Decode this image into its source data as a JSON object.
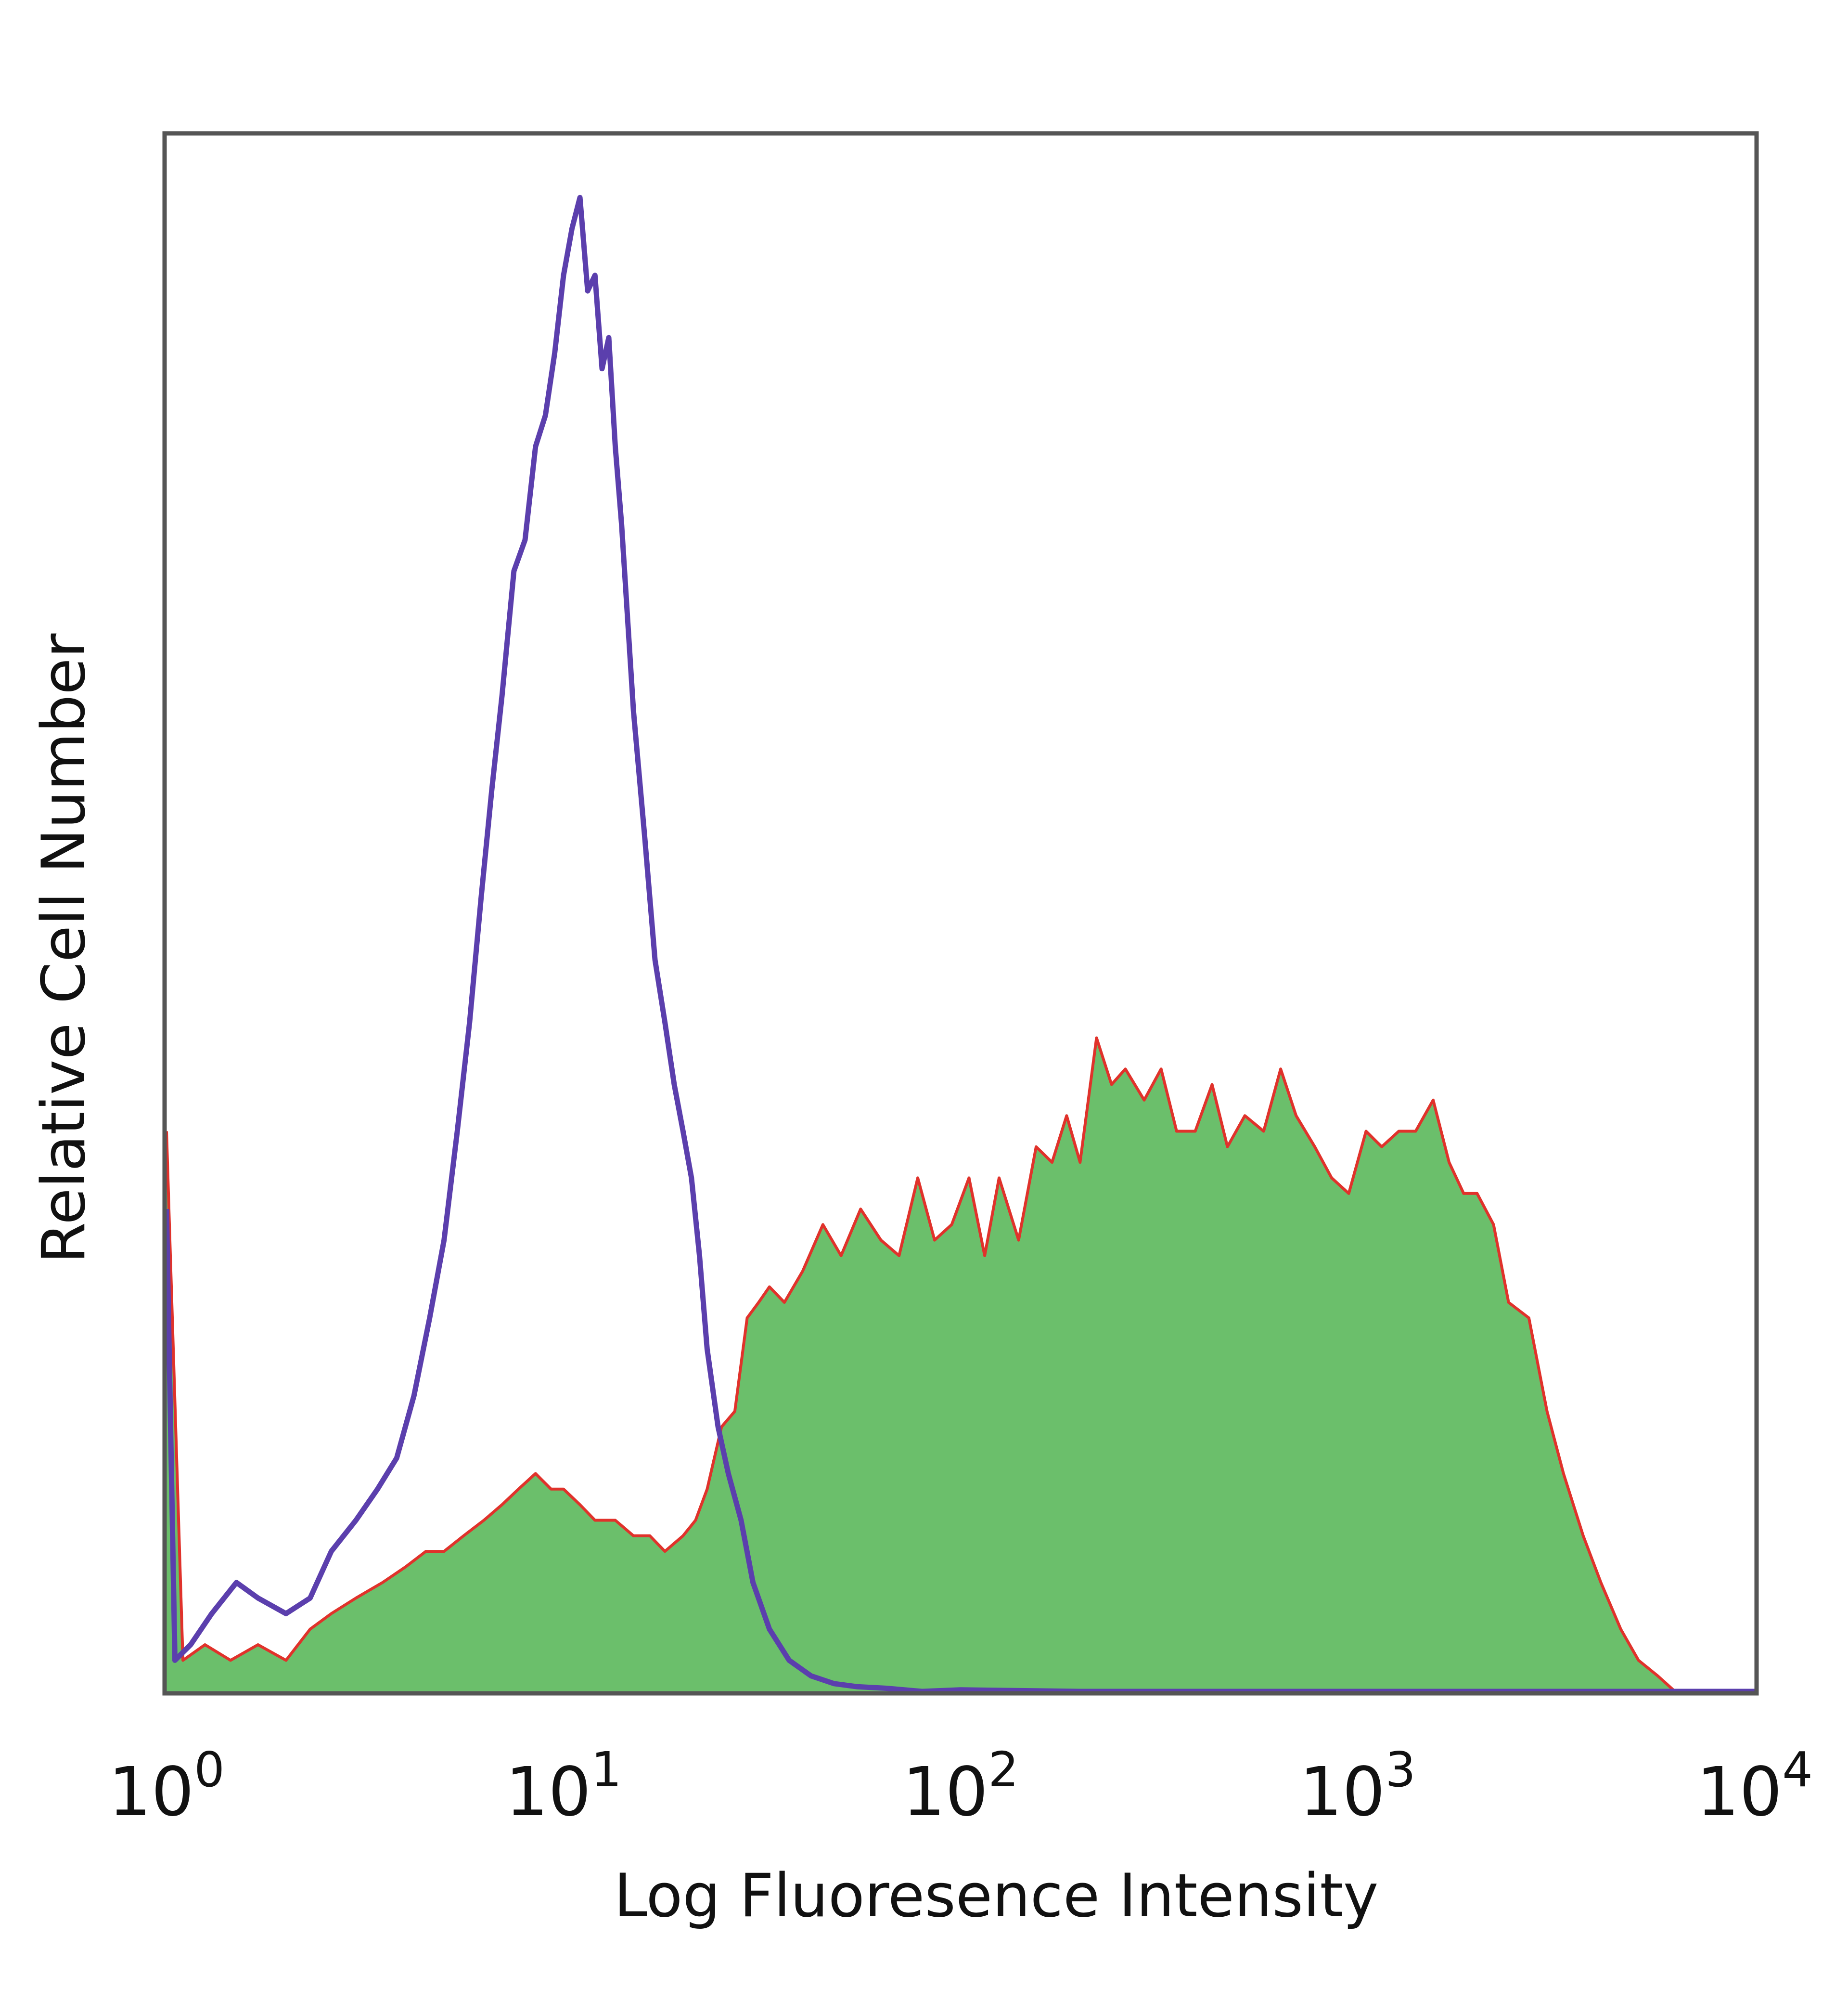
{
  "chart_data": {
    "type": "area",
    "title": "",
    "xlabel": "Log Fluoresence Intensity",
    "ylabel": "Relative Cell Number",
    "xscale": "log",
    "xlim": [
      1,
      10000
    ],
    "ylim": [
      0,
      1
    ],
    "grid": false,
    "legend": "none",
    "x_ticks": [
      {
        "base": "10",
        "exp": "0"
      },
      {
        "base": "10",
        "exp": "1"
      },
      {
        "base": "10",
        "exp": "2"
      },
      {
        "base": "10",
        "exp": "3"
      },
      {
        "base": "10",
        "exp": "4"
      }
    ],
    "series": [
      {
        "style": "filled",
        "fill_color": "#6bbf6b",
        "line_color": "#e0322b",
        "x": [
          1.0,
          1.1,
          1.25,
          1.45,
          1.7,
          2.0,
          2.3,
          2.6,
          3.0,
          3.5,
          4.0,
          4.5,
          5.0,
          5.6,
          6.3,
          7.0,
          7.7,
          8.5,
          9.3,
          10.0,
          11.0,
          12.0,
          13.5,
          15.0,
          16.5,
          18.0,
          20.0,
          21.5,
          23.0,
          25.0,
          27.0,
          29.0,
          31.0,
          33.0,
          36.0,
          40.0,
          45.0,
          50.0,
          56.0,
          63.0,
          70.0,
          78.0,
          86.0,
          95.0,
          105.0,
          115.0,
          125.0,
          140.0,
          155.0,
          170.0,
          185.0,
          200.0,
          220.0,
          240.0,
          260.0,
          290.0,
          320.0,
          350.0,
          390.0,
          430.0,
          470.0,
          520.0,
          580.0,
          640.0,
          700.0,
          780.0,
          860.0,
          950.0,
          1050.0,
          1150.0,
          1270.0,
          1400.0,
          1550.0,
          1700.0,
          1850.0,
          2000.0,
          2200.0,
          2400.0,
          2700.0,
          3000.0,
          3300.0,
          3700.0,
          4100.0,
          4600.0,
          5100.0,
          5700.0,
          6300.0,
          7000.0
        ],
        "y": [
          0.36,
          0.02,
          0.03,
          0.02,
          0.03,
          0.02,
          0.04,
          0.05,
          0.06,
          0.07,
          0.08,
          0.09,
          0.09,
          0.1,
          0.11,
          0.12,
          0.13,
          0.14,
          0.13,
          0.13,
          0.12,
          0.11,
          0.11,
          0.1,
          0.1,
          0.09,
          0.1,
          0.11,
          0.13,
          0.17,
          0.18,
          0.24,
          0.25,
          0.26,
          0.25,
          0.27,
          0.3,
          0.28,
          0.31,
          0.29,
          0.28,
          0.33,
          0.29,
          0.3,
          0.33,
          0.28,
          0.33,
          0.29,
          0.35,
          0.34,
          0.37,
          0.34,
          0.42,
          0.39,
          0.4,
          0.38,
          0.4,
          0.36,
          0.36,
          0.39,
          0.35,
          0.37,
          0.36,
          0.4,
          0.37,
          0.35,
          0.33,
          0.32,
          0.36,
          0.35,
          0.36,
          0.36,
          0.38,
          0.34,
          0.32,
          0.32,
          0.3,
          0.25,
          0.24,
          0.18,
          0.14,
          0.1,
          0.07,
          0.04,
          0.02,
          0.01,
          0.0,
          0.0
        ]
      },
      {
        "style": "line",
        "line_color": "#5b3fad",
        "x": [
          1.0,
          1.05,
          1.15,
          1.3,
          1.5,
          1.7,
          2.0,
          2.3,
          2.6,
          3.0,
          3.4,
          3.8,
          4.2,
          4.6,
          5.0,
          5.4,
          5.8,
          6.2,
          6.6,
          7.0,
          7.5,
          8.0,
          8.5,
          9.0,
          9.5,
          10.0,
          10.5,
          11.0,
          11.5,
          12.0,
          12.5,
          13.0,
          13.5,
          14.0,
          15.0,
          16.0,
          17.0,
          18.0,
          19.0,
          20.0,
          21.0,
          22.0,
          23.0,
          24.5,
          26.0,
          28.0,
          30.0,
          33.0,
          37.0,
          42.0,
          48.0,
          55.0,
          65.0,
          80.0,
          100.0,
          200.0,
          1000.0,
          10000.0
        ],
        "y": [
          0.31,
          0.02,
          0.03,
          0.05,
          0.07,
          0.06,
          0.05,
          0.06,
          0.09,
          0.11,
          0.13,
          0.15,
          0.19,
          0.24,
          0.29,
          0.36,
          0.43,
          0.51,
          0.58,
          0.64,
          0.72,
          0.74,
          0.8,
          0.82,
          0.86,
          0.91,
          0.94,
          0.96,
          0.9,
          0.91,
          0.85,
          0.87,
          0.8,
          0.75,
          0.63,
          0.55,
          0.47,
          0.43,
          0.39,
          0.36,
          0.33,
          0.28,
          0.22,
          0.17,
          0.14,
          0.11,
          0.07,
          0.04,
          0.02,
          0.01,
          0.005,
          0.003,
          0.002,
          0.0,
          0.001,
          0.0,
          0.0,
          0.0
        ]
      }
    ]
  }
}
